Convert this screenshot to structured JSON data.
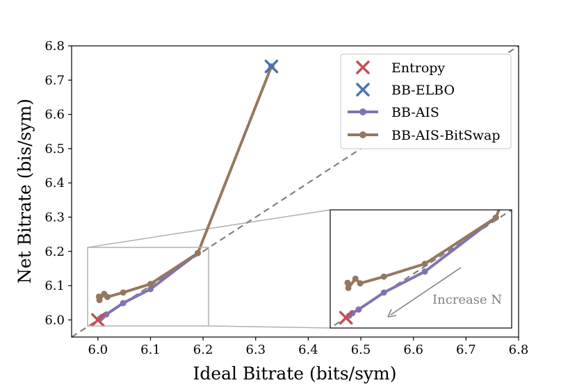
{
  "chart_data": {
    "type": "line",
    "title": "",
    "xlabel": "Ideal Bitrate (bits/sym)",
    "ylabel": "Net Bitrate (bis/sym)",
    "xlim": [
      5.95,
      6.8
    ],
    "ylim": [
      5.95,
      6.8
    ],
    "xticks": [
      "6.0",
      "6.1",
      "6.2",
      "6.3",
      "6.4",
      "6.5",
      "6.6",
      "6.7",
      "6.8"
    ],
    "yticks": [
      "6.0",
      "6.1",
      "6.2",
      "6.3",
      "6.4",
      "6.5",
      "6.6",
      "6.7",
      "6.8"
    ],
    "grid": false,
    "legend_position": "top-right",
    "reference_line": {
      "label": "y = x",
      "style": "dashed",
      "color": "#808080"
    },
    "series": [
      {
        "name": "Entropy",
        "kind": "marker",
        "marker": "x",
        "color": "#c44e52",
        "points": [
          [
            6.0,
            6.0
          ]
        ]
      },
      {
        "name": "BB-ELBO",
        "kind": "marker",
        "marker": "x",
        "color": "#4c72b0",
        "points": [
          [
            6.33,
            6.74
          ]
        ]
      },
      {
        "name": "BB-AIS",
        "kind": "line",
        "color": "#8172b3",
        "points": [
          [
            6.004,
            6.004
          ],
          [
            6.008,
            6.009
          ],
          [
            6.016,
            6.016
          ],
          [
            6.048,
            6.049
          ],
          [
            6.1,
            6.09
          ],
          [
            6.19,
            6.195
          ]
        ]
      },
      {
        "name": "BB-AIS-BitSwap",
        "kind": "line",
        "color": "#937860",
        "points": [
          [
            6.33,
            6.74
          ],
          [
            6.19,
            6.195
          ],
          [
            6.1,
            6.105
          ],
          [
            6.048,
            6.08
          ],
          [
            6.018,
            6.067
          ],
          [
            6.012,
            6.076
          ],
          [
            6.003,
            6.058
          ],
          [
            6.002,
            6.068
          ]
        ]
      }
    ],
    "inset": {
      "xlim": [
        5.98,
        6.21
      ],
      "ylim": [
        5.98,
        6.21
      ],
      "annotation": "Increase N"
    }
  }
}
